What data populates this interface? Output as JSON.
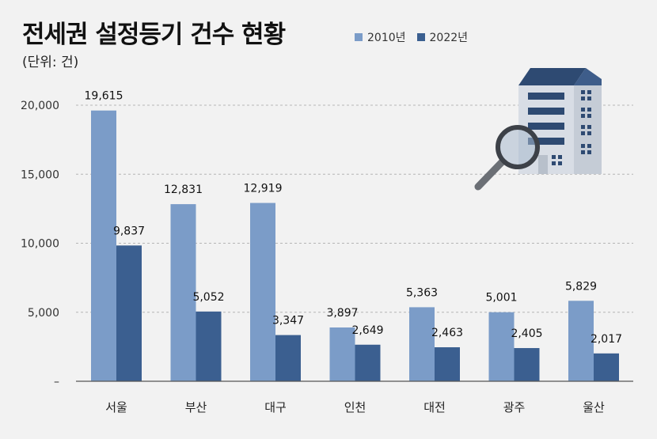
{
  "title": "전세권 설정등기 건수 현황",
  "unit": "(단위: 건)",
  "colors": {
    "series_2010": "#7b9cc8",
    "series_2022": "#3b5f90",
    "building": "#2e4a72",
    "building_light": "#d8dde5"
  },
  "chart_data": {
    "type": "bar",
    "title": "전세권 설정등기 건수 현황",
    "xlabel": "",
    "ylabel": "",
    "ylim": [
      0,
      20000
    ],
    "yticks": [
      0,
      5000,
      10000,
      15000,
      20000
    ],
    "ytick_labels": [
      "–",
      "5,000",
      "10,000",
      "15,000",
      "20,000"
    ],
    "grid": true,
    "legend": "top",
    "categories": [
      "서울",
      "부산",
      "대구",
      "인천",
      "대전",
      "광주",
      "울산"
    ],
    "series": [
      {
        "name": "2010년",
        "values": [
          19615,
          12831,
          12919,
          3897,
          5363,
          5001,
          5829
        ],
        "labels": [
          "19,615",
          "12,831",
          "12,919",
          "3,897",
          "5,363",
          "5,001",
          "5,829"
        ]
      },
      {
        "name": "2022년",
        "values": [
          9837,
          5052,
          3347,
          2649,
          2463,
          2405,
          2017
        ],
        "labels": [
          "9,837",
          "5,052",
          "3,347",
          "2,649",
          "2,463",
          "2,405",
          "2,017"
        ]
      }
    ]
  },
  "icons": {
    "illustration": "building-with-magnifier-icon"
  }
}
